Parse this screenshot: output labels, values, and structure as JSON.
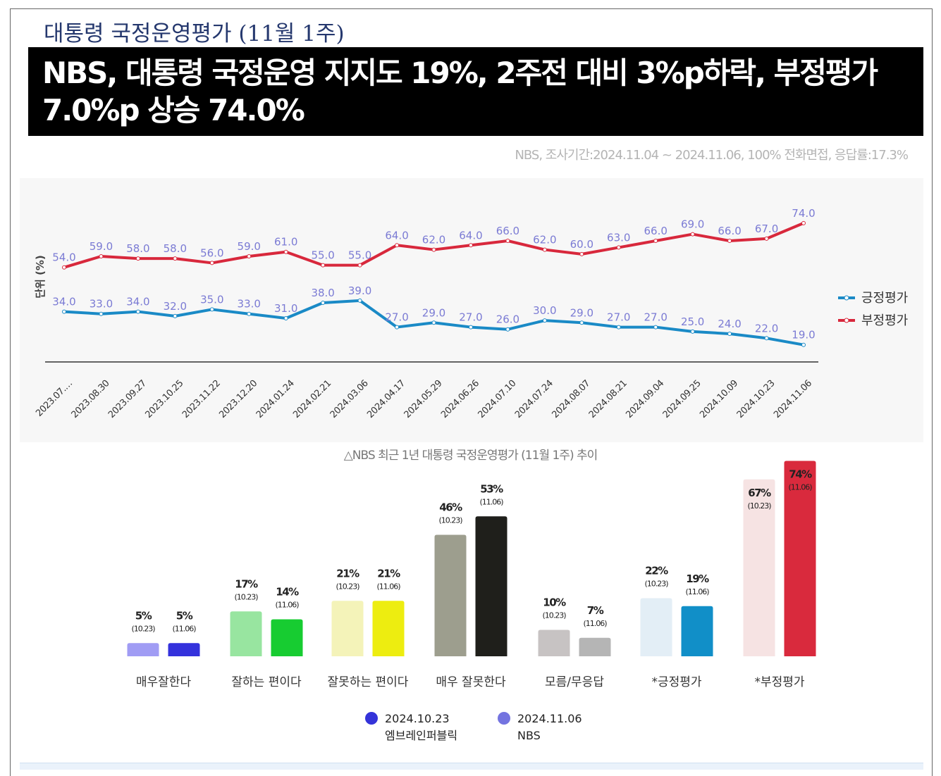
{
  "header": {
    "title": "대통령 국정운영평가 (11월 1주)",
    "headline": "NBS, 대통령 국정운영 지지도 19%, 2주전 대비 3%p하락, 부정평가 7.0%p 상승 74.0%",
    "source": "NBS, 조사기간:2024.11.04 ~ 2024.11.06, 100% 전화면접, 응답률:17.3%"
  },
  "line_caption": "△NBS 최근 1년 대통령 국정운영평가 (11월 1주) 추이",
  "chart_data": [
    {
      "type": "line",
      "ylabel": "단위 (%)",
      "x": [
        "2023.07.…",
        "2023.08.30",
        "2023.09.27",
        "2023.10.25",
        "2023.11.22",
        "2023.12.20",
        "2024.01.24",
        "2024.02.21",
        "2024.03.06",
        "2024.04.17",
        "2024.05.29",
        "2024.06.26",
        "2024.07.10",
        "2024.07.24",
        "2024.08.07",
        "2024.08.21",
        "2024.09.04",
        "2024.09.25",
        "2024.10.09",
        "2024.10.23",
        "2024.11.06"
      ],
      "series": [
        {
          "name": "긍정평가",
          "color": "#1a8ac6",
          "values": [
            34.0,
            33.0,
            34.0,
            32.0,
            35.0,
            33.0,
            31.0,
            38.0,
            39.0,
            27.0,
            29.0,
            27.0,
            26.0,
            30.0,
            29.0,
            27.0,
            27.0,
            25.0,
            24.0,
            22.0,
            19.0
          ]
        },
        {
          "name": "부정평가",
          "color": "#d8283c",
          "values": [
            54.0,
            59.0,
            58.0,
            58.0,
            56.0,
            59.0,
            61.0,
            55.0,
            55.0,
            64.0,
            62.0,
            64.0,
            66.0,
            62.0,
            60.0,
            63.0,
            66.0,
            69.0,
            66.0,
            67.0,
            74.0
          ]
        }
      ],
      "ylim": [
        10,
        80
      ],
      "label_color": "#7b7bd4",
      "legend_position": "right"
    },
    {
      "type": "bar",
      "categories": [
        "매우잘한다",
        "잘하는 편이다",
        "잘못하는 편이다",
        "매우 잘못한다",
        "모름/무응답",
        "*긍정평가",
        "*부정평가"
      ],
      "series": [
        {
          "name": "2024.10.23",
          "sublabel": "엠브레인퍼블릭",
          "date_tag": "(10.23)",
          "values": [
            5,
            17,
            21,
            46,
            10,
            22,
            67
          ],
          "colors": [
            "#a09cf4",
            "#98e5a0",
            "#f4f3b9",
            "#9d9e8e",
            "#c7c3c3",
            "#e3eef6",
            "#f6e3e3"
          ]
        },
        {
          "name": "2024.11.06",
          "sublabel": "NBS",
          "date_tag": "(11.06)",
          "values": [
            5,
            14,
            21,
            53,
            7,
            19,
            74
          ],
          "colors": [
            "#3432dc",
            "#17cc31",
            "#eded10",
            "#1f1f1b",
            "#b5b5b5",
            "#118fc8",
            "#d92a3d"
          ]
        }
      ],
      "legend_colors": [
        "#3433d9",
        "#7474e0"
      ],
      "value_suffix": "%",
      "ylim": [
        0,
        80
      ]
    }
  ]
}
